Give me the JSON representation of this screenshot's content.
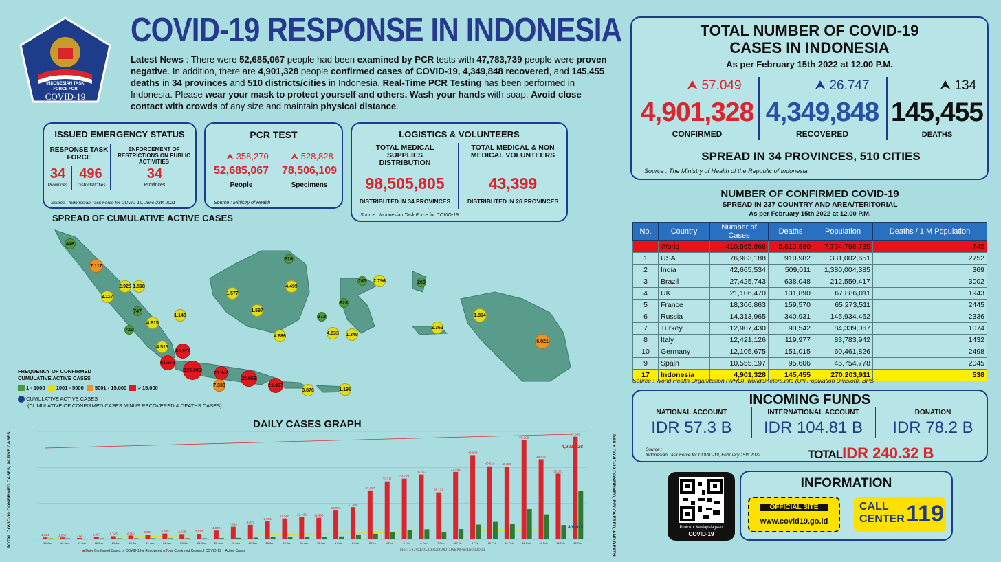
{
  "logo": {
    "line1": "INDONESIAN TASK",
    "line2": "FORCE FOR",
    "line3": "COVID-19"
  },
  "title": "COVID-19 RESPONSE IN INDONESIA",
  "news": {
    "p1": "Latest News",
    "p2": " : There were ",
    "p3": "52,685,067",
    "p4": " people had been ",
    "p5": "examined by PCR",
    "p6": " tests with ",
    "p7": "47,783,739",
    "p8": " people were ",
    "p9": "proven negative",
    "p10": ". In addition, there are ",
    "p11": "4,901,328",
    "p12": " people ",
    "p13": "confirmed cases of COVID-19, 4,349,848 recovered",
    "p14": ", and ",
    "p15": "145,455 deaths",
    "p16": " in ",
    "p17": "34 provinces",
    "p18": " and ",
    "p19": "510 districts/cities",
    "p20": " in Indonesia. ",
    "p21": "Real-Time PCR Testing",
    "p22": " has been performed in Indonesia. Please ",
    "p23": "wear your mask to protect yourself and others. Wash your hands",
    "p24": " with soap. ",
    "p25": "Avoid close contact with crowds",
    "p26": " of any size and maintain ",
    "p27": "physical distance",
    "p28": "."
  },
  "emergency": {
    "title": "ISSUED EMERGENCY STATUS",
    "col1_label": "RESPONSE TASK FORCE",
    "col2_label": "ENFORCEMENT OF RESTRICTIONS ON PUBLIC ACTIVITIES",
    "v1": "34",
    "v1_unit": "Provinces",
    "v2": "496",
    "v2_unit": "Districts/Cities",
    "v3": "34",
    "v3_unit": "Provinces",
    "source": "Source : Indonesian Task Force for COVID-19, June 23th 2021"
  },
  "pcr": {
    "title": "PCR TEST",
    "delta_people": "358,270",
    "delta_specimens": "528,828",
    "people": "52,685,067",
    "specimens": "78,506,109",
    "people_label": "People",
    "specimens_label": "Specimens",
    "source": "Source : Ministry of Health"
  },
  "logistics": {
    "title": "LOGISTICS & VOLUNTEERS",
    "col1_label": "TOTAL MEDICAL SUPPLIES DISTRIBUTION",
    "col2_label": "TOTAL MEDICAL & NON MEDICAL VOLUNTEERS",
    "v1": "98,505,805",
    "v2": "43,399",
    "v1_note": "DISTRIBUTED IN 34 PROVINCES",
    "v2_note": "DISTRIBUTED IN 26 PROVINCES",
    "source": "Source : Indonesian Task Force for COVID-19"
  },
  "total": {
    "title1": "TOTAL NUMBER OF COVID-19",
    "title2": "CASES IN INDONESIA",
    "asof": "As per February 15th 2022 at 12.00 P.M.",
    "delta_confirmed": "57.049",
    "delta_recovered": "26.747",
    "delta_deaths": "134",
    "confirmed": "4,901,328",
    "recovered": "4,349,848",
    "deaths": "145,455",
    "confirmed_label": "CONFIRMED",
    "recovered_label": "RECOVERED",
    "deaths_label": "DEATHS",
    "spread": "SPREAD IN 34 PROVINCES, 510 CITIES",
    "source": "Source : The Ministry of Health of the Republic of Indonesia",
    "color_confirmed": "#d9252b",
    "color_recovered": "#2a4fa6",
    "color_deaths": "#111111"
  },
  "world": {
    "title": "NUMBER OF CONFIRMED COVID-19",
    "subtitle": "SPREAD IN 237 COUNTRY AND AREA/TERITORIAL",
    "asof": "As per February 15th 2022 at 12.00 P.M.",
    "headers": [
      "No.",
      "Country",
      "Number of Cases",
      "Deaths",
      "Population",
      "Deaths / 1 M Population"
    ],
    "rows": [
      [
        "",
        "World",
        "410,565,868",
        "5,810,880",
        "7,794,798,739",
        "745"
      ],
      [
        "1",
        "USA",
        "76,983,188",
        "910,982",
        "331,002,651",
        "2752"
      ],
      [
        "2",
        "India",
        "42,665,534",
        "509,011",
        "1,380,004,385",
        "369"
      ],
      [
        "3",
        "Brazil",
        "27,425,743",
        "638,048",
        "212,559,417",
        "3002"
      ],
      [
        "4",
        "UK",
        "21,106,470",
        "131,890",
        "67,886,011",
        "1943"
      ],
      [
        "5",
        "France",
        "18,306,863",
        "159,570",
        "65,273,511",
        "2445"
      ],
      [
        "6",
        "Russia",
        "14,313,965",
        "340,931",
        "145,934,462",
        "2336"
      ],
      [
        "7",
        "Turkey",
        "12,907,430",
        "90,542",
        "84,339,067",
        "1074"
      ],
      [
        "8",
        "Italy",
        "12,421,126",
        "119,977",
        "83,783,942",
        "1432"
      ],
      [
        "10",
        "Germany",
        "12,105,675",
        "151,015",
        "60,461,826",
        "2498"
      ],
      [
        "9",
        "Spain",
        "10,555,197",
        "95,606",
        "46,754,778",
        "2045"
      ],
      [
        "17",
        "Indonesia",
        "4,901,328",
        "145,455",
        "270,203,911",
        "538"
      ]
    ],
    "source": "Source : World Health Organization (WHO), worldometers.info (UN Population Division), BPS"
  },
  "funds": {
    "title": "INCOMING FUNDS",
    "national_label": "NATIONAL ACCOUNT",
    "international_label": "INTERNATIONAL ACCOUNT",
    "donation_label": "DONATION",
    "national": "IDR 57.3 B",
    "international": "IDR 104.81 B",
    "donation": "IDR 78.2 B",
    "total_label": "TOTAL",
    "total": "IDR 240.32 B",
    "source1": "Source :",
    "source2": "Indonesian Task Force for COVID-19, February 15th 2022"
  },
  "info": {
    "qr_caption1": "Protokol Kesiapsiagaan",
    "qr_caption2": "COVID-19",
    "title": "INFORMATION",
    "official": "OFFICIAL SITE",
    "site": "www.covid19.go.id",
    "call1": "CALL",
    "call2": "CENTER",
    "call_number": "119"
  },
  "map": {
    "title": "SPREAD OF CUMULATIVE ACTIVE CASES",
    "legend_title1": "FREQUENCY OF CONFIRMED",
    "legend_title2": "CUMULATIVE ACTIVE CASES",
    "legend_items": [
      "1 - 1000",
      "1001 - 5000",
      "5001 - 15.000",
      "> 15.000"
    ],
    "legend_colors": [
      "#4c9a3b",
      "#e3de1b",
      "#ef9224",
      "#e1191f"
    ],
    "legend_dot": "CUMULATIVE ACTIVE CASES",
    "legend_dot_note": "(CUMULATIVE OF CONFIRMED CASES MINUS RECOVERED & DEATHS CASES)",
    "provinces": [
      {
        "v": "446",
        "c": "g"
      },
      {
        "v": "7.117",
        "c": "o"
      },
      {
        "v": "2.925",
        "c": "y"
      },
      {
        "v": "1.518",
        "c": "y"
      },
      {
        "v": "2.117",
        "c": "y"
      },
      {
        "v": "747",
        "c": "g"
      },
      {
        "v": "1.148",
        "c": "y"
      },
      {
        "v": "720",
        "c": "g"
      },
      {
        "v": "4.815",
        "c": "y"
      },
      {
        "v": "4.515",
        "c": "y"
      },
      {
        "v": "83.971",
        "c": "r"
      },
      {
        "v": "61.673",
        "c": "r"
      },
      {
        "v": "125.006",
        "c": "r"
      },
      {
        "v": "21.548",
        "c": "r"
      },
      {
        "v": "7.338",
        "c": "o"
      },
      {
        "v": "22.956",
        "c": "r"
      },
      {
        "v": "19.467",
        "c": "r"
      },
      {
        "v": "3.876",
        "c": "y"
      },
      {
        "v": "1.191",
        "c": "y"
      },
      {
        "v": "226",
        "c": "g"
      },
      {
        "v": "1.577",
        "c": "y"
      },
      {
        "v": "4.499",
        "c": "y"
      },
      {
        "v": "1.597",
        "c": "y"
      },
      {
        "v": "4.686",
        "c": "y"
      },
      {
        "v": "245",
        "c": "g"
      },
      {
        "v": "2.796",
        "c": "y"
      },
      {
        "v": "628",
        "c": "g"
      },
      {
        "v": "172",
        "c": "g"
      },
      {
        "v": "4.833",
        "c": "y"
      },
      {
        "v": "1.340",
        "c": "y"
      },
      {
        "v": "203",
        "c": "g"
      },
      {
        "v": "2.362",
        "c": "y"
      },
      {
        "v": "1.804",
        "c": "y"
      },
      {
        "v": "6.021",
        "c": "o"
      }
    ]
  },
  "chart_data": {
    "type": "bar",
    "title": "DAILY CASES GRAPH",
    "ylabel": "TOTAL COVID-19 CONFIRMED CASES, ACTIVE CASES",
    "y2label": "DAILY COVID-19 CONFIRMED, RECOVERED, AND DEATH",
    "categories": [
      "15 Jan",
      "16 Jan",
      "17 Jan",
      "18 Jan",
      "19 Jan",
      "20 Jan",
      "21 Jan",
      "22 Jan",
      "23 Jan",
      "24 Jan",
      "25 Jan",
      "26 Jan",
      "27 Jan",
      "28 Jan",
      "29 Jan",
      "30 Jan",
      "31 Jan",
      "1 Feb",
      "2 Feb",
      "3 Feb",
      "4 Feb",
      "5 Feb",
      "6 Feb",
      "7 Feb",
      "8 Feb",
      "9 Feb",
      "10 Feb",
      "11 Feb",
      "12 Feb",
      "13 Feb",
      "14 Feb",
      "15 Feb"
    ],
    "series": [
      {
        "name": "Daily Confirmed Cases of COVID-19",
        "color": "#d9252b",
        "values": [
          1054,
          1000,
          772,
          1367,
          1745,
          2116,
          2604,
          3205,
          2925,
          3017,
          4878,
          7010,
          8077,
          9905,
          11588,
          12422,
          11953,
          16021,
          17895,
          27197,
          32211,
          33729,
          36057,
          26121,
          37492,
          46843,
          40618,
          40489,
          55209,
          44526,
          36501,
          57049
        ]
      },
      {
        "name": "Recovered",
        "color": "#2e7a2e",
        "values": [
          500,
          550,
          420,
          560,
          575,
          590,
          600,
          610,
          620,
          600,
          700,
          800,
          1000,
          1200,
          1300,
          1400,
          1500,
          1600,
          2700,
          3100,
          3800,
          5300,
          5600,
          3800,
          5700,
          8200,
          9700,
          8500,
          16800,
          13900,
          8000,
          26747
        ]
      },
      {
        "name": "Total Confirmed Cases of COVID-19",
        "color": "#d9252b",
        "line": true
      },
      {
        "name": "Active Cases",
        "color": "#e3de1b",
        "line": true
      }
    ],
    "labels_shown": [
      "1,054",
      "1,000",
      "772",
      "1,367",
      "1,745",
      "2,116",
      "2,604",
      "3,205",
      "2,925",
      "3,017",
      "4,878",
      "7,010",
      "8,077",
      "9,905",
      "11,588",
      "12,422",
      "11,953",
      "16,021",
      "17,895",
      "27,197",
      "32,211",
      "33,729",
      "36,057",
      "26,121",
      "37,492",
      "46,843",
      "40,618",
      "40,489",
      "55,209",
      "44,526",
      "36,501",
      "57,049"
    ],
    "last_total_label": "4,901,328",
    "last_active_label": "406,025",
    "ylim": [
      0,
      60000
    ]
  },
  "footer": "No : 147/01/01/08/COVID-19/BNPB/15022022"
}
